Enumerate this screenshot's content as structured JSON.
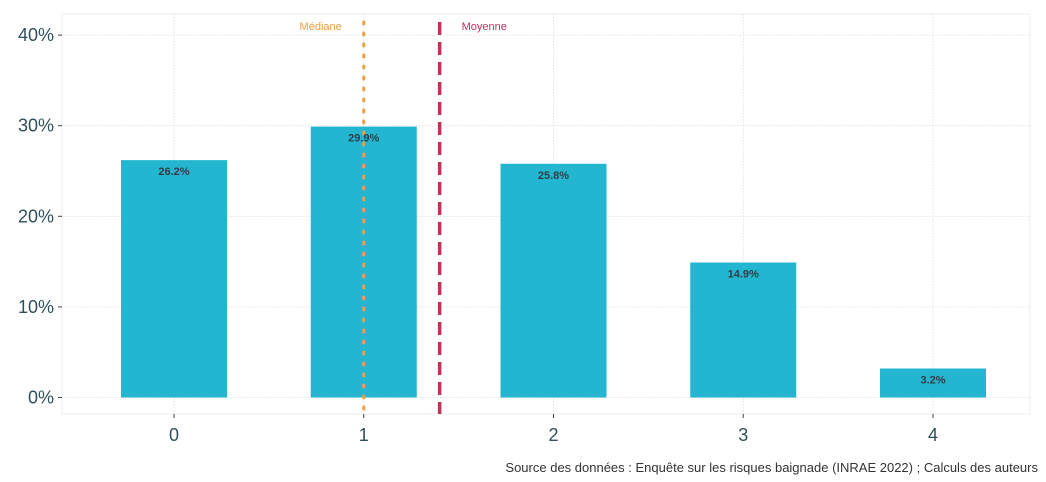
{
  "chart_data": {
    "type": "bar",
    "categories": [
      "0",
      "1",
      "2",
      "3",
      "4"
    ],
    "values": [
      26.2,
      29.9,
      25.8,
      14.9,
      3.2
    ],
    "data_labels": [
      "26.2%",
      "29.9%",
      "25.8%",
      "14.9%",
      "3.2%"
    ],
    "title": "",
    "xlabel": "",
    "ylabel": "",
    "ylim": [
      0,
      42
    ],
    "yticks": [
      0,
      10,
      20,
      30,
      40
    ],
    "ytick_labels": [
      "0%",
      "10%",
      "20%",
      "30%",
      "40%"
    ],
    "grid": true,
    "bar_color": "#24b6d0",
    "reference_lines": [
      {
        "label": "Médiane",
        "x": 1,
        "style": "dotted",
        "color": "#f0a040"
      },
      {
        "label": "Moyenne",
        "x": 1.4,
        "style": "dashed",
        "color": "#c0325a"
      }
    ],
    "caption": "Source des données : Enquête sur les risques baignade (INRAE 2022) ; Calculs des auteurs"
  }
}
